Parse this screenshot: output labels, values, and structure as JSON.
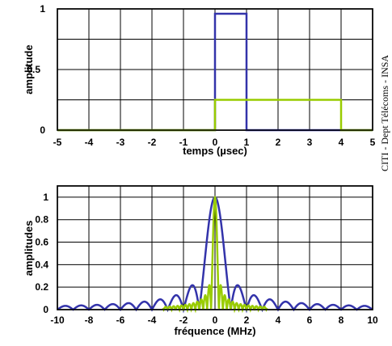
{
  "credit": "CITI - Dept Télécoms - INSA",
  "chart_data": [
    {
      "type": "line",
      "xlabel": "temps (µsec)",
      "ylabel": "amplitude",
      "xlim": [
        -5,
        5
      ],
      "ylim": [
        0,
        1
      ],
      "xticks": [
        "-5",
        "-4",
        "-3",
        "-2",
        "-1",
        "0",
        "1",
        "2",
        "3",
        "4",
        "5"
      ],
      "yticks": [
        "0",
        "0.5",
        "1"
      ],
      "grid": "on",
      "series": [
        {
          "color": "#3333aa",
          "x": [
            -5,
            0,
            0,
            1,
            1,
            5
          ],
          "y": [
            0,
            0,
            0.96,
            0.96,
            0,
            0
          ]
        },
        {
          "color": "#99cc00",
          "x": [
            -5,
            0,
            0,
            4,
            4,
            5
          ],
          "y": [
            0,
            0,
            0.25,
            0.25,
            0,
            0
          ]
        }
      ]
    },
    {
      "type": "line",
      "xlabel": "fréquence (MHz)",
      "ylabel": "amplitudes",
      "xlim": [
        -10,
        10
      ],
      "ylim": [
        0,
        1.1
      ],
      "xticks": [
        "-10",
        "-8",
        "-6",
        "-4",
        "-2",
        "0",
        "2",
        "4",
        "6",
        "8",
        "10"
      ],
      "yticks": [
        "0",
        "0.2",
        "0.4",
        "0.6",
        "0.8",
        "1"
      ],
      "grid": "on",
      "series": [
        {
          "color": "#3333aa",
          "function": "|sinc(f·1µs)|",
          "pulse_width_us": 1,
          "x_range": [
            -10,
            10
          ]
        },
        {
          "color": "#99cc00",
          "function": "|sinc(f·4µs)|",
          "pulse_width_us": 4,
          "x_range": [
            -3.3,
            3.3
          ]
        }
      ]
    }
  ]
}
